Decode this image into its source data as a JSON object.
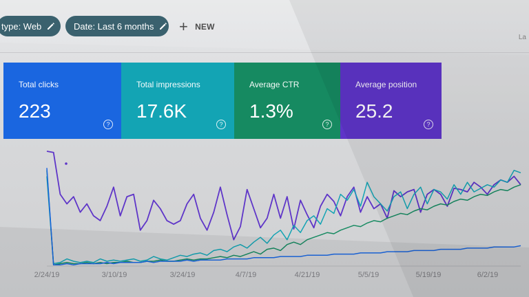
{
  "filters": {
    "type_chip": "type: Web",
    "date_chip": "Date: Last 6 months",
    "new_label": "NEW",
    "corner_text": "La"
  },
  "metrics": [
    {
      "label": "Total clicks",
      "value": "223"
    },
    {
      "label": "Total impressions",
      "value": "17.6K"
    },
    {
      "label": "Average CTR",
      "value": "1.3%"
    },
    {
      "label": "Average position",
      "value": "25.2"
    }
  ],
  "colors": {
    "clicks": "#1a66e0",
    "impressions": "#13a4b4",
    "ctr": "#168a61",
    "position": "#5e35c8",
    "chip": "#1f4c5a"
  },
  "chart_data": {
    "type": "line",
    "x_ticks": [
      "2/24/19",
      "3/10/19",
      "3/24/19",
      "4/7/19",
      "4/21/19",
      "5/5/19",
      "5/19/19",
      "6/2/19"
    ],
    "series": [
      {
        "color": "#5e35c8",
        "values": [
          96,
          95,
          60,
          52,
          58,
          45,
          52,
          42,
          38,
          50,
          66,
          42,
          58,
          60,
          30,
          38,
          55,
          48,
          38,
          35,
          38,
          52,
          60,
          40,
          30,
          45,
          66,
          43,
          22,
          33,
          64,
          48,
          32,
          40,
          60,
          40,
          58,
          31,
          55,
          43,
          32,
          50,
          60,
          54,
          42,
          58,
          66,
          45,
          58,
          48,
          52,
          40,
          63,
          58,
          62,
          64,
          45,
          60,
          64,
          60,
          50,
          65,
          64,
          62,
          70,
          66,
          60,
          68,
          72,
          70,
          75,
          68
        ]
      },
      {
        "color": "#13a4b4",
        "values": [
          75,
          2,
          3,
          6,
          4,
          3,
          4,
          3,
          6,
          4,
          5,
          4,
          5,
          6,
          4,
          5,
          8,
          6,
          5,
          7,
          9,
          8,
          10,
          11,
          9,
          13,
          14,
          12,
          16,
          18,
          15,
          20,
          24,
          19,
          26,
          30,
          22,
          34,
          28,
          38,
          42,
          35,
          48,
          44,
          60,
          55,
          64,
          50,
          70,
          58,
          52,
          46,
          58,
          62,
          48,
          60,
          66,
          52,
          64,
          62,
          56,
          68,
          60,
          70,
          62,
          65,
          68,
          66,
          72,
          70,
          80,
          78
        ]
      },
      {
        "color": "#168a61",
        "values": [
          80,
          1,
          2,
          3,
          2,
          2,
          3,
          2,
          3,
          2,
          3,
          3,
          4,
          3,
          3,
          4,
          4,
          5,
          4,
          4,
          5,
          6,
          5,
          6,
          6,
          7,
          8,
          7,
          9,
          8,
          10,
          12,
          10,
          14,
          15,
          13,
          18,
          20,
          18,
          22,
          24,
          26,
          28,
          27,
          30,
          32,
          34,
          33,
          36,
          38,
          37,
          40,
          42,
          44,
          43,
          46,
          48,
          47,
          50,
          52,
          51,
          54,
          56,
          55,
          58,
          60,
          59,
          62,
          64,
          63,
          66,
          68
        ]
      },
      {
        "color": "#1a66e0",
        "values": [
          82,
          1,
          1,
          2,
          1,
          2,
          2,
          2,
          2,
          3,
          2,
          3,
          3,
          3,
          3,
          4,
          3,
          4,
          4,
          4,
          4,
          5,
          4,
          5,
          5,
          5,
          5,
          6,
          6,
          6,
          6,
          7,
          7,
          7,
          7,
          8,
          8,
          8,
          8,
          9,
          9,
          9,
          9,
          10,
          10,
          10,
          10,
          11,
          11,
          11,
          11,
          12,
          12,
          12,
          12,
          13,
          13,
          13,
          13,
          14,
          14,
          14,
          14,
          15,
          15,
          15,
          15,
          16,
          16,
          16,
          16,
          17
        ]
      }
    ]
  }
}
